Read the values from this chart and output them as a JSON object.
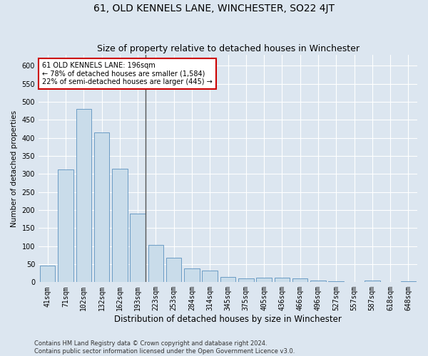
{
  "title": "61, OLD KENNELS LANE, WINCHESTER, SO22 4JT",
  "subtitle": "Size of property relative to detached houses in Winchester",
  "xlabel": "Distribution of detached houses by size in Winchester",
  "ylabel": "Number of detached properties",
  "bar_labels": [
    "41sqm",
    "71sqm",
    "102sqm",
    "132sqm",
    "162sqm",
    "193sqm",
    "223sqm",
    "253sqm",
    "284sqm",
    "314sqm",
    "345sqm",
    "375sqm",
    "405sqm",
    "436sqm",
    "466sqm",
    "496sqm",
    "527sqm",
    "557sqm",
    "587sqm",
    "618sqm",
    "648sqm"
  ],
  "bar_values": [
    47,
    312,
    480,
    415,
    315,
    190,
    103,
    68,
    38,
    32,
    14,
    11,
    13,
    13,
    10,
    5,
    3,
    1,
    5,
    1,
    2
  ],
  "bar_color": "#c9dcea",
  "bar_edgecolor": "#5a90be",
  "ylim": [
    0,
    630
  ],
  "yticks": [
    0,
    50,
    100,
    150,
    200,
    250,
    300,
    350,
    400,
    450,
    500,
    550,
    600
  ],
  "property_bar_index": 5,
  "annotation_text_line1": "61 OLD KENNELS LANE: 196sqm",
  "annotation_text_line2": "← 78% of detached houses are smaller (1,584)",
  "annotation_text_line3": "22% of semi-detached houses are larger (445) →",
  "annotation_box_color": "#ffffff",
  "annotation_box_edgecolor": "#cc0000",
  "vline_color": "#555555",
  "footer_line1": "Contains HM Land Registry data © Crown copyright and database right 2024.",
  "footer_line2": "Contains public sector information licensed under the Open Government Licence v3.0.",
  "background_color": "#dce6f0",
  "plot_background_color": "#dce6f0",
  "grid_color": "#ffffff",
  "title_fontsize": 10,
  "subtitle_fontsize": 9,
  "xlabel_fontsize": 8.5,
  "ylabel_fontsize": 7.5,
  "tick_fontsize": 7,
  "annotation_fontsize": 7,
  "footer_fontsize": 6
}
